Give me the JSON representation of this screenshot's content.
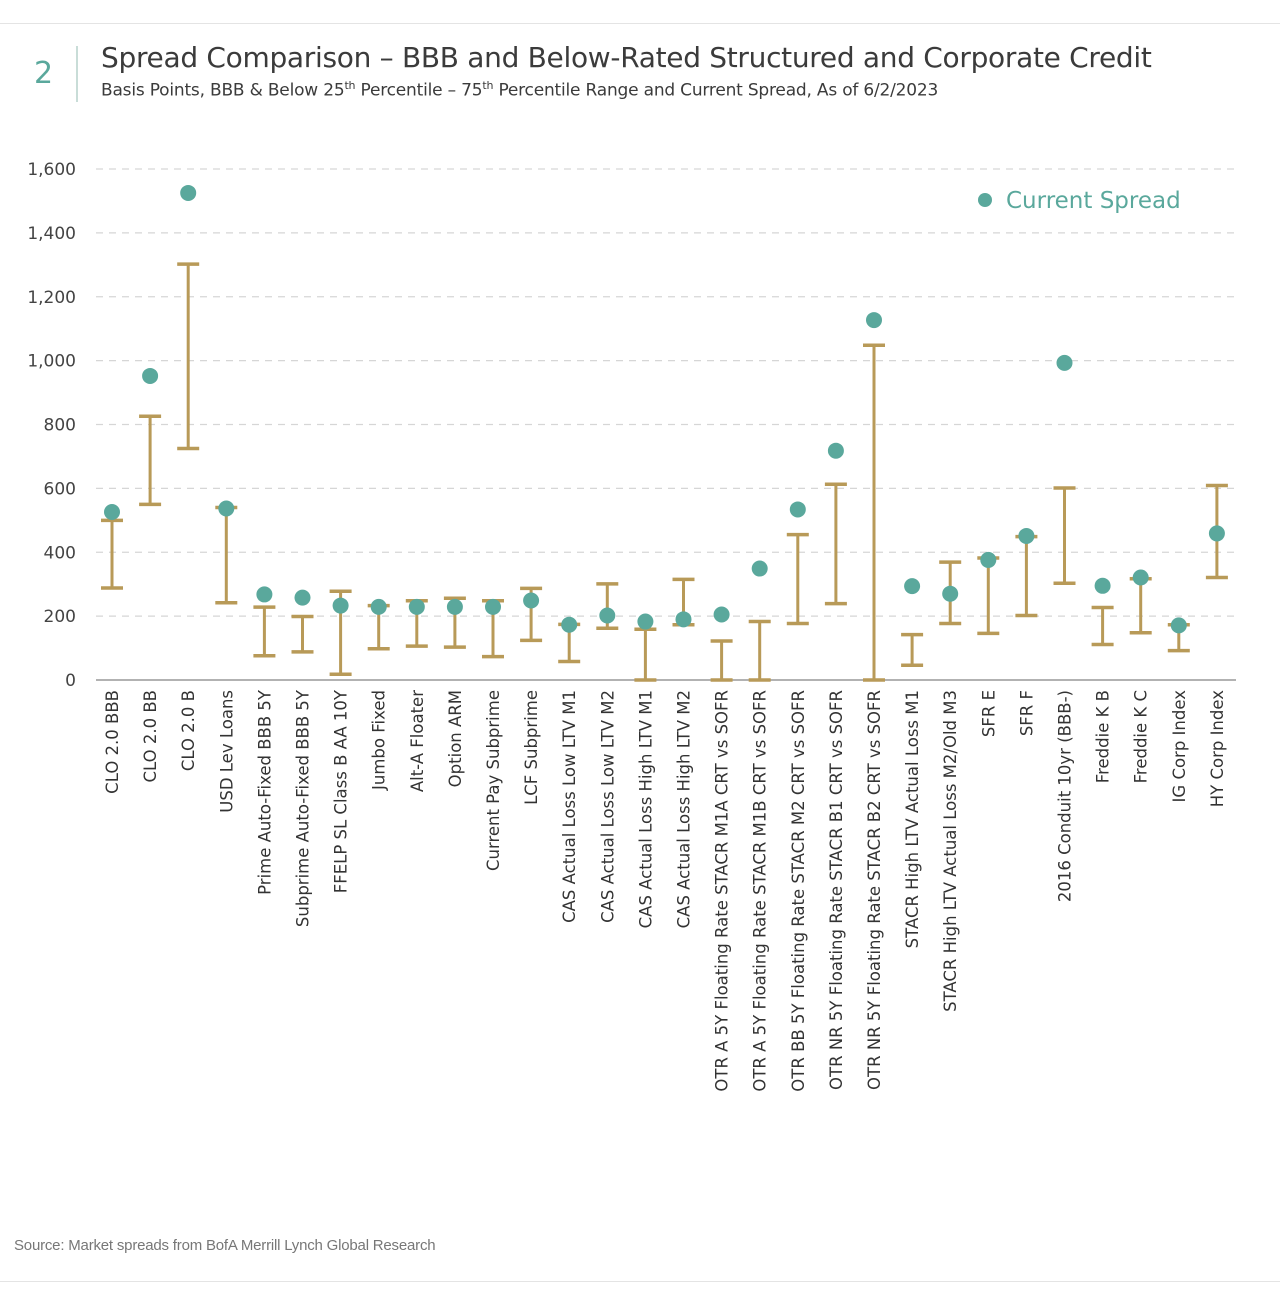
{
  "header": {
    "number": "2",
    "title": "Spread Comparison – BBB and Below-Rated Structured and Corporate Credit",
    "subtitle_parts": [
      "Basis Points, BBB & Below 25",
      "th",
      " Percentile – 75",
      "th",
      " Percentile Range and Current Spread, As of 6/2/2023"
    ]
  },
  "source": "Source: Market spreads from BofA Merrill Lynch Global Research",
  "chart_data": {
    "type": "scatter",
    "title": "",
    "ylabel": "",
    "xlabel": "",
    "ylim": [
      0,
      1600
    ],
    "yticks": [
      0,
      200,
      400,
      600,
      800,
      1000,
      1200,
      1400,
      1600
    ],
    "ytick_labels": [
      "0",
      "200",
      "400",
      "600",
      "800",
      "1,000",
      "1,200",
      "1,400",
      "1,600"
    ],
    "grid": "horizontal dashed",
    "legend": {
      "position": "top-right",
      "entries": [
        "Current Spread"
      ]
    },
    "colors": {
      "range": "#b89a58",
      "current": "#5aa89c",
      "grid": "#d6d6d6",
      "axis": "#999999"
    },
    "categories": [
      "CLO 2.0 BBB",
      "CLO 2.0 BB",
      "CLO 2.0 B",
      "USD Lev Loans",
      "Prime Auto-Fixed BBB 5Y",
      "Subprime Auto-Fixed BBB 5Y",
      "FFELP SL Class B AA 10Y",
      "Jumbo Fixed",
      "Alt-A Floater",
      "Option ARM",
      "Current Pay Subprime",
      "LCF Subprime",
      "CAS Actual Loss Low LTV M1",
      "CAS Actual Loss Low LTV M2",
      "CAS Actual Loss High LTV M1",
      "CAS Actual Loss High LTV M2",
      "OTR A 5Y Floating Rate STACR M1A CRT vs SOFR",
      "OTR A 5Y Floating Rate STACR M1B CRT vs SOFR",
      "OTR BB 5Y Floating Rate STACR M2 CRT vs SOFR",
      "OTR NR 5Y Floating Rate STACR B1 CRT vs SOFR",
      "OTR NR 5Y Floating Rate STACR B2 CRT vs SOFR",
      "STACR High LTV Actual Loss M1",
      "STACR High LTV Actual Loss M2/Old M3",
      "SFR E",
      "SFR F",
      "2016 Conduit 10yr (BBB-)",
      "Freddie K B",
      "Freddie K C",
      "IG Corp Index",
      "HY Corp Index"
    ],
    "series": [
      {
        "name": "25th Percentile",
        "values": [
          288,
          550,
          725,
          242,
          76,
          88,
          18,
          98,
          106,
          103,
          73,
          124,
          58,
          162,
          0,
          173,
          0,
          0,
          177,
          239,
          0,
          46,
          177,
          146,
          202,
          303,
          111,
          148,
          92,
          321
        ]
      },
      {
        "name": "75th Percentile",
        "values": [
          500,
          826,
          1302,
          540,
          228,
          199,
          278,
          233,
          248,
          256,
          248,
          287,
          174,
          301,
          159,
          315,
          122,
          183,
          455,
          613,
          1048,
          142,
          369,
          382,
          449,
          601,
          227,
          317,
          173,
          609
        ]
      },
      {
        "name": "Current Spread",
        "values": [
          526,
          952,
          1525,
          537,
          268,
          258,
          233,
          229,
          229,
          229,
          229,
          249,
          173,
          202,
          183,
          190,
          205,
          349,
          534,
          718,
          1127,
          294,
          270,
          376,
          451,
          993,
          295,
          321,
          171,
          459
        ]
      }
    ]
  }
}
